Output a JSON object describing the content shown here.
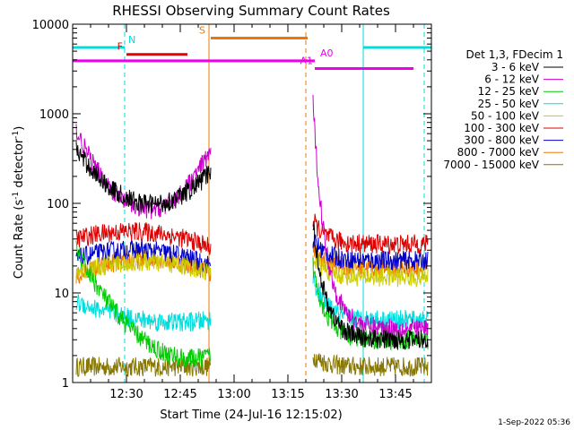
{
  "chart_data": {
    "type": "line",
    "title": "RHESSI Observing Summary Count Rates",
    "xlabel": "Start Time (24-Jul-16 12:15:02)",
    "ylabel_main": "Count Rate (s",
    "ylabel_sup1": "-1",
    "ylabel_mid": " detector",
    "ylabel_sup2": "-1",
    "ylabel_end": ")",
    "x_start_min": 0,
    "x_end_min": 100,
    "y_scale": "log",
    "ylim": [
      1,
      10000
    ],
    "x_ticks": [
      {
        "min": 15,
        "label": "12:30"
      },
      {
        "min": 30,
        "label": "12:45"
      },
      {
        "min": 45,
        "label": "13:00"
      },
      {
        "min": 60,
        "label": "13:15"
      },
      {
        "min": 75,
        "label": "13:30"
      },
      {
        "min": 90,
        "label": "13:45"
      }
    ],
    "y_ticks": [
      {
        "value": 1,
        "label": "1"
      },
      {
        "value": 10,
        "label": "10"
      },
      {
        "value": 100,
        "label": "100"
      },
      {
        "value": 1000,
        "label": "1000"
      },
      {
        "value": 10000,
        "label": "10000"
      }
    ],
    "legend_title": "Det 1,3, FDecim 1",
    "legend_position": "right",
    "series": [
      {
        "name": "3 - 6 keV",
        "color": "#000000",
        "seg1": {
          "start": 400,
          "min": 100,
          "end": 230
        },
        "seg2": {
          "peak": 60,
          "level": 3
        }
      },
      {
        "name": "6 - 12 keV",
        "color": "#cc00cc",
        "seg1": {
          "start": 650,
          "min": 85,
          "end": 400
        },
        "seg2": {
          "peak": 1300,
          "level": 4
        }
      },
      {
        "name": "12 - 25 keV",
        "color": "#00cc00",
        "seg1": {
          "start": 30,
          "min": 3,
          "end": 2
        },
        "seg2": {
          "peak": 20,
          "level": 3
        }
      },
      {
        "name": "25 - 50 keV",
        "color": "#00dddd",
        "seg1": {
          "start": 8,
          "min": 5,
          "end": 5
        },
        "seg2": {
          "peak": 15,
          "level": 5
        }
      },
      {
        "name": "50 - 100 keV",
        "color": "#cccc00",
        "seg1": {
          "start": 17,
          "min": 22,
          "end": 17
        },
        "seg2": {
          "peak": 25,
          "level": 15
        }
      },
      {
        "name": "100 - 300 keV",
        "color": "#dd0000",
        "seg1": {
          "start": 40,
          "min": 48,
          "end": 32
        },
        "seg2": {
          "peak": 65,
          "level": 35
        }
      },
      {
        "name": "300 - 800 keV",
        "color": "#0000cc",
        "seg1": {
          "start": 24,
          "min": 30,
          "end": 20
        },
        "seg2": {
          "peak": 40,
          "level": 23
        }
      },
      {
        "name": "800 - 7000 keV",
        "color": "#ee7700",
        "seg1": {
          "start": 15,
          "min": 24,
          "end": 17
        },
        "seg2": {
          "peak": 30,
          "level": 19
        }
      },
      {
        "name": "7000 - 15000 keV",
        "color": "#887700",
        "seg1": {
          "start": 1.5,
          "min": 1.5,
          "end": 1.5
        },
        "seg2": {
          "peak": 2,
          "level": 1.5
        }
      }
    ],
    "data_windows": [
      {
        "x0": 1,
        "x1": 38.5
      },
      {
        "x0": 67,
        "x1": 99
      }
    ],
    "flag_bars": [
      {
        "label": "N",
        "color": "#00dddd",
        "y": 5500,
        "x0": 0,
        "x1": 14.5,
        "label_x": 15.5,
        "label_side": "right"
      },
      {
        "label": "",
        "color": "#00dddd",
        "y": 5500,
        "x0": 81,
        "x1": 100,
        "label_x": 81,
        "label_side": "none"
      },
      {
        "label": "F",
        "color": "#ee0000",
        "y": 4600,
        "x0": 15,
        "x1": 32,
        "label_x": 14,
        "label_side": "left"
      },
      {
        "label": "S",
        "color": "#ee7700",
        "y": 7000,
        "x0": 38.5,
        "x1": 65.5,
        "label_x": 37,
        "label_side": "left"
      },
      {
        "label": "",
        "color": "#ee00ee",
        "y": 3900,
        "x0": 0,
        "x1": 66.5,
        "label_x": 0,
        "label_side": "none"
      },
      {
        "label": "A1",
        "color": "#ee00ee",
        "y": 3200,
        "x0": 67.5,
        "x1": 95,
        "label_x": 67,
        "label_side": "left"
      },
      {
        "label": "A0",
        "color": "#ee00ee",
        "y": 3900,
        "x0": 66.5,
        "x1": 67.5,
        "label_x": 69,
        "label_side": "right"
      }
    ],
    "vlines": [
      {
        "x": 14.5,
        "color": "#00dddd",
        "dashed": true
      },
      {
        "x": 38,
        "color": "#ee7700",
        "dashed": false
      },
      {
        "x": 65,
        "color": "#ee7700",
        "dashed": true
      },
      {
        "x": 81,
        "color": "#00dddd",
        "dashed": false
      },
      {
        "x": 98,
        "color": "#00dddd",
        "dashed": true
      },
      {
        "x": 0,
        "color": "#00dddd",
        "dashed": false
      }
    ]
  },
  "footer_date": "1-Sep-2022 05:36"
}
